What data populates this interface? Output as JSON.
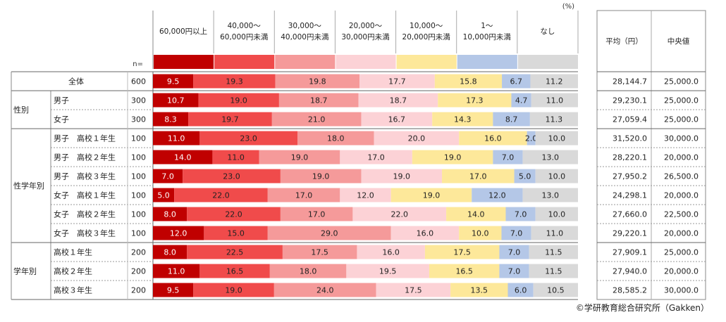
{
  "unit": "(%)",
  "n_label": "n=",
  "colors": [
    "#c00000",
    "#f04b4b",
    "#f59a9a",
    "#fcd2d6",
    "#fde89a",
    "#b4c7e7",
    "#d9d9d9"
  ],
  "table_headers": {
    "avg": "平均（円）",
    "median": "中央値"
  },
  "copyright": "©学研教育総合研究所（Gakken）",
  "groups": [
    {
      "label": "",
      "start": 0,
      "count": 1
    },
    {
      "label": "性別",
      "start": 1,
      "count": 2
    },
    {
      "label": "性学年別",
      "start": 3,
      "count": 6
    },
    {
      "label": "学年別",
      "start": 9,
      "count": 3
    }
  ],
  "chart_data": {
    "type": "bar",
    "stacked": "100%",
    "orientation": "horizontal",
    "categories": [
      "60,000円以上",
      "40,000～60,000円未満",
      "30,000～40,000円未満",
      "20,000～30,000円未満",
      "10,000～20,000円未満",
      "1～10,000円未満",
      "なし"
    ],
    "rows": [
      {
        "label": "全体",
        "n": "600",
        "values": [
          9.5,
          19.3,
          19.8,
          17.7,
          15.8,
          6.7,
          11.2
        ],
        "avg": "28,144.7",
        "median": "25,000.0"
      },
      {
        "label": "男子",
        "n": "300",
        "values": [
          10.7,
          19.0,
          18.7,
          18.7,
          17.3,
          4.7,
          11.0
        ],
        "avg": "29,230.1",
        "median": "25,000.0"
      },
      {
        "label": "女子",
        "n": "300",
        "values": [
          8.3,
          19.7,
          21.0,
          16.7,
          14.3,
          8.7,
          11.3
        ],
        "avg": "27,059.4",
        "median": "25,000.0"
      },
      {
        "label": "男子　高校１年生",
        "n": "100",
        "values": [
          11.0,
          23.0,
          18.0,
          20.0,
          16.0,
          2.0,
          10.0
        ],
        "avg": "31,520.0",
        "median": "30,000.0"
      },
      {
        "label": "男子　高校２年生",
        "n": "100",
        "values": [
          14.0,
          11.0,
          19.0,
          17.0,
          19.0,
          7.0,
          13.0
        ],
        "avg": "28,220.1",
        "median": "20,000.0"
      },
      {
        "label": "男子　高校３年生",
        "n": "100",
        "values": [
          7.0,
          23.0,
          19.0,
          19.0,
          17.0,
          5.0,
          10.0
        ],
        "avg": "27,950.2",
        "median": "26,500.0"
      },
      {
        "label": "女子　高校１年生",
        "n": "100",
        "values": [
          5.0,
          22.0,
          17.0,
          12.0,
          19.0,
          12.0,
          13.0
        ],
        "avg": "24,298.1",
        "median": "20,000.0"
      },
      {
        "label": "女子　高校２年生",
        "n": "100",
        "values": [
          8.0,
          22.0,
          17.0,
          22.0,
          14.0,
          7.0,
          10.0
        ],
        "avg": "27,660.0",
        "median": "22,500.0"
      },
      {
        "label": "女子　高校３年生",
        "n": "100",
        "values": [
          12.0,
          15.0,
          29.0,
          16.0,
          10.0,
          7.0,
          11.0
        ],
        "avg": "29,220.1",
        "median": "20,000.0"
      },
      {
        "label": "高校１年生",
        "n": "200",
        "values": [
          8.0,
          22.5,
          17.5,
          16.0,
          17.5,
          7.0,
          11.5
        ],
        "avg": "27,909.1",
        "median": "25,000.0"
      },
      {
        "label": "高校２年生",
        "n": "200",
        "values": [
          11.0,
          16.5,
          18.0,
          19.5,
          16.5,
          7.0,
          11.5
        ],
        "avg": "27,940.0",
        "median": "20,000.0"
      },
      {
        "label": "高校３年生",
        "n": "200",
        "values": [
          9.5,
          19.0,
          24.0,
          17.5,
          13.5,
          6.0,
          10.5
        ],
        "avg": "28,585.2",
        "median": "30,000.0"
      }
    ]
  }
}
